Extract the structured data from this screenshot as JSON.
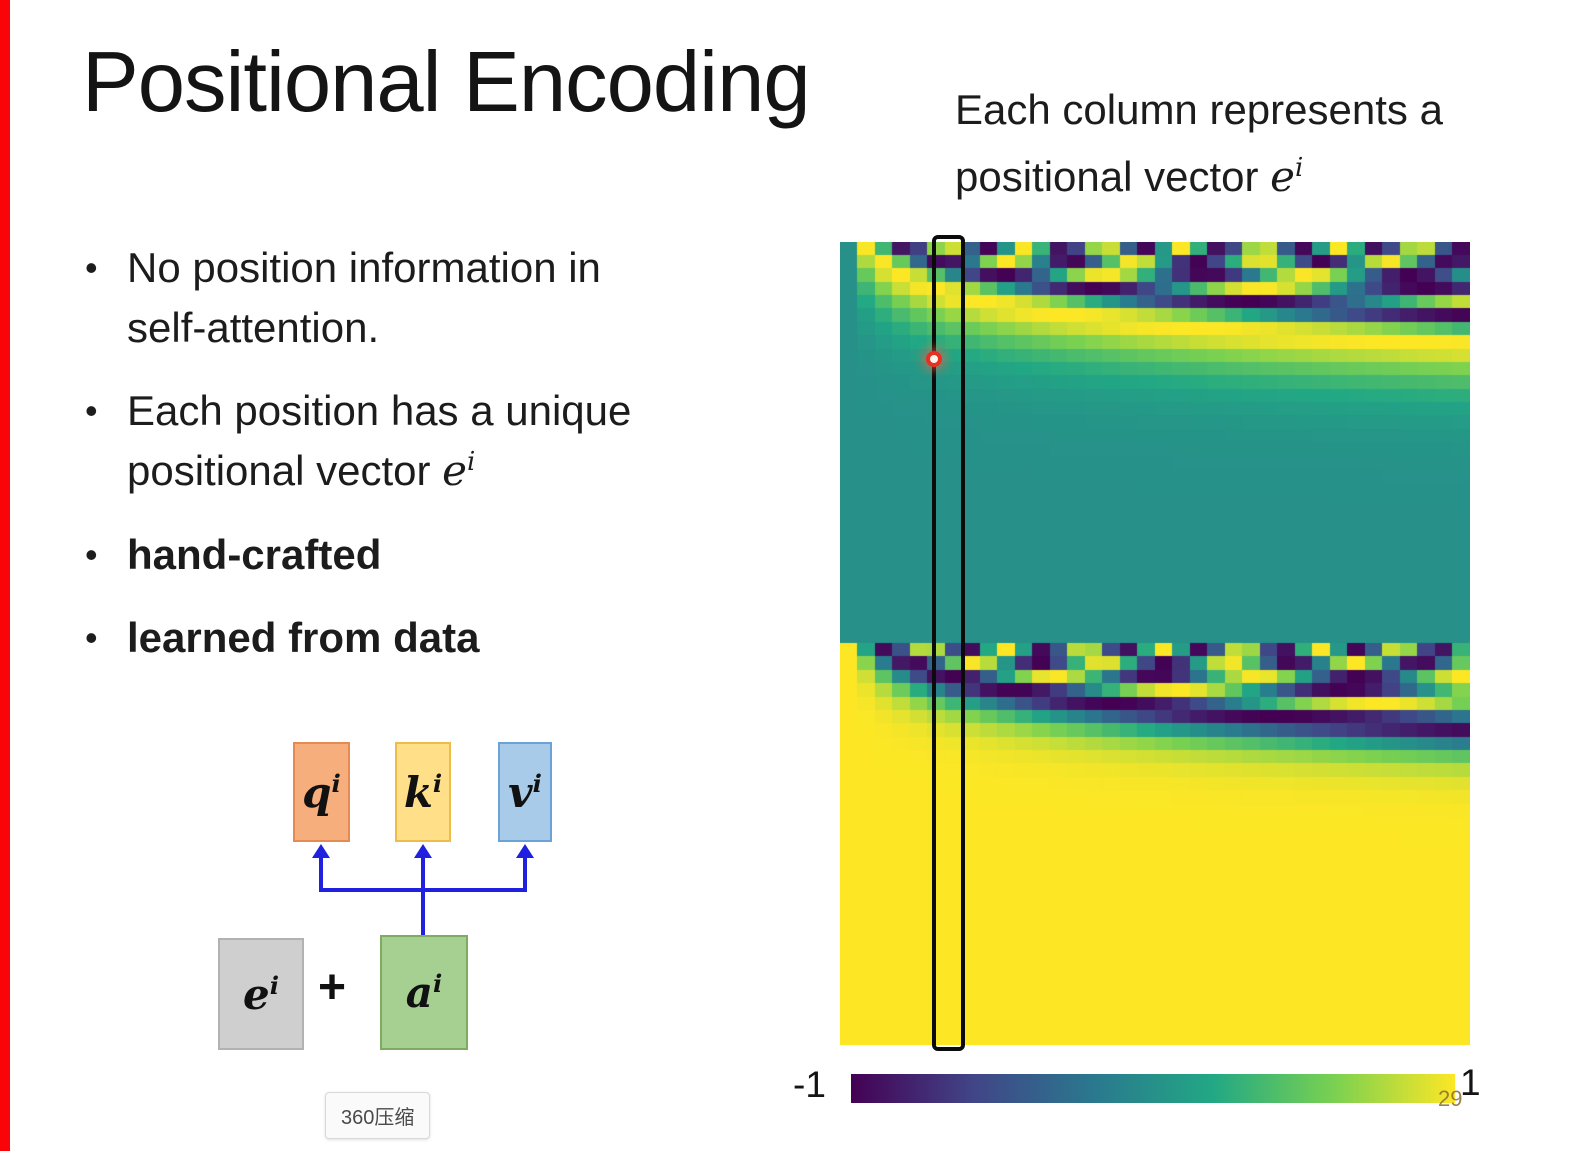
{
  "slide": {
    "title": "Positional Encoding",
    "page_number": "29",
    "caption": {
      "line1": "Each column represents a",
      "line2_text": "positional vector ",
      "math_base": "e",
      "math_sup": "i"
    },
    "bullets": {
      "marker": "•",
      "b1_line1": "No position information in",
      "b1_line2": "self-attention.",
      "b2_line1": "Each position has a unique",
      "b2_line2_text": "positional vector ",
      "b2_math_base": "e",
      "b2_math_sup": "i",
      "b3": "hand-crafted",
      "b4": "learned from data"
    }
  },
  "diagram": {
    "plus": "+",
    "arrow_color": "#2020df",
    "boxes": {
      "q": {
        "base": "q",
        "sup": "i",
        "fill": "#f6ae7c",
        "border": "#e58a52"
      },
      "k": {
        "base": "k",
        "sup": "i",
        "fill": "#ffdf87",
        "border": "#eebb4d"
      },
      "v": {
        "base": "v",
        "sup": "i",
        "fill": "#a9cbea",
        "border": "#6ba3d6"
      },
      "e": {
        "base": "e",
        "sup": "i",
        "fill": "#cfcfcf",
        "border": "#b2b2b2"
      },
      "a": {
        "base": "a",
        "sup": "i",
        "fill": "#a6cf92",
        "border": "#7dab62"
      }
    }
  },
  "chart_data": {
    "type": "heatmap",
    "title": "Sinusoidal positional encoding matrix (each column is a positional vector e^i)",
    "x_meaning": "position index",
    "y_meaning": "encoding dimension: top half sine components, bottom half cosine components",
    "cols": 36,
    "rows": 60,
    "freq_base": 1.4,
    "freq_decay": 0.62,
    "value_range": [
      -1,
      1
    ],
    "colormap": "viridis",
    "colormap_stops": [
      "#440154",
      "#414487",
      "#2a788e",
      "#22a884",
      "#7ad151",
      "#fde725"
    ],
    "colorbar": {
      "min_label": "-1",
      "max_label": "1"
    },
    "highlight_column": {
      "description": "black outline box around one column near the left with a red circular marker",
      "marker_color": "#e63022"
    }
  },
  "watermark": {
    "text": "360压缩"
  }
}
